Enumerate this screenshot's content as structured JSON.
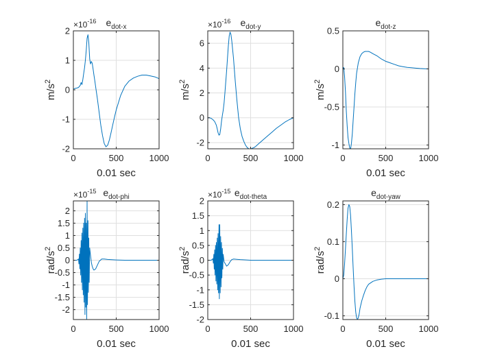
{
  "figure": {
    "background": "#ffffff",
    "axes_color": "#262626",
    "grid_color": "#dfdfdf",
    "line_color": "#0072bd"
  },
  "chart_data": [
    {
      "type": "line",
      "title": "e",
      "title_sub": "dot-x",
      "xlabel": "0.01 sec",
      "ylabel": "m/s",
      "ylabel_sup": "2",
      "exponent": "×10",
      "exponent_sup": "-16",
      "xlim": [
        0,
        1000
      ],
      "ylim": [
        -2,
        2
      ],
      "xticks": [
        0,
        500,
        1000
      ],
      "xticklabels": [
        "0",
        "500",
        "1000"
      ],
      "yticks": [
        -2,
        -1,
        0,
        1,
        2
      ],
      "yticklabels": [
        "-2",
        "-1",
        "0",
        "1",
        "2"
      ],
      "grid": true,
      "series": [
        {
          "name": "e_dot-x",
          "x": [
            0,
            20,
            40,
            60,
            80,
            90,
            100,
            110,
            120,
            130,
            140,
            150,
            160,
            170,
            180,
            190,
            200,
            210,
            220,
            230,
            240,
            250,
            260,
            280,
            300,
            320,
            340,
            360,
            380,
            400,
            420,
            440,
            460,
            480,
            500,
            550,
            600,
            650,
            700,
            750,
            800,
            850,
            900,
            950,
            1000
          ],
          "y": [
            0.02,
            0.05,
            0.06,
            0.08,
            0.15,
            0.25,
            0.18,
            0.35,
            0.55,
            0.75,
            1.0,
            1.35,
            1.75,
            1.87,
            1.6,
            1.05,
            0.88,
            0.96,
            0.9,
            0.7,
            0.5,
            0.3,
            0.1,
            -0.3,
            -0.75,
            -1.2,
            -1.55,
            -1.82,
            -1.93,
            -1.88,
            -1.7,
            -1.45,
            -1.18,
            -0.92,
            -0.68,
            -0.2,
            0.12,
            0.3,
            0.4,
            0.46,
            0.5,
            0.5,
            0.47,
            0.44,
            0.38
          ]
        }
      ]
    },
    {
      "type": "line",
      "title": "e",
      "title_sub": "dot-y",
      "xlabel": "",
      "ylabel": "m/s",
      "ylabel_sup": "2",
      "exponent": "×10",
      "exponent_sup": "-16",
      "xlim": [
        0,
        1000
      ],
      "ylim": [
        -2.5,
        7
      ],
      "xticks": [
        0,
        500,
        1000
      ],
      "xticklabels": [
        "0",
        "500",
        "1000"
      ],
      "yticks": [
        -2,
        0,
        2,
        4,
        6
      ],
      "yticklabels": [
        "-2",
        "0",
        "2",
        "4",
        "6"
      ],
      "grid": true,
      "series": [
        {
          "name": "e_dot-y",
          "x": [
            0,
            20,
            40,
            60,
            80,
            100,
            110,
            120,
            130,
            140,
            150,
            160,
            170,
            180,
            190,
            200,
            220,
            240,
            250,
            260,
            270,
            280,
            300,
            320,
            340,
            360,
            380,
            400,
            420,
            440,
            460,
            480,
            500,
            520,
            540,
            560,
            600,
            650,
            700,
            750,
            800,
            850,
            900,
            950,
            1000
          ],
          "y": [
            0.0,
            0.0,
            -0.05,
            -0.15,
            -0.3,
            -0.6,
            -0.9,
            -1.2,
            -1.4,
            -1.35,
            -0.9,
            -0.3,
            0.2,
            0.6,
            1.2,
            2.0,
            3.8,
            5.8,
            6.6,
            6.9,
            6.7,
            6.2,
            4.8,
            3.0,
            1.4,
            0.0,
            -0.9,
            -1.5,
            -1.9,
            -2.2,
            -2.4,
            -2.5,
            -2.5,
            -2.45,
            -2.4,
            -2.3,
            -2.05,
            -1.75,
            -1.45,
            -1.15,
            -0.85,
            -0.6,
            -0.35,
            -0.15,
            0.0
          ]
        }
      ]
    },
    {
      "type": "line",
      "title": "e",
      "title_sub": "dot-z",
      "xlabel": "0.01 sec",
      "ylabel": "m/s",
      "ylabel_sup": "2",
      "exponent": "",
      "exponent_sup": "",
      "xlim": [
        0,
        1000
      ],
      "ylim": [
        -1.05,
        0.5
      ],
      "xticks": [
        0,
        500,
        1000
      ],
      "xticklabels": [
        "0",
        "500",
        "1000"
      ],
      "yticks": [
        -1,
        -0.5,
        0,
        0.5
      ],
      "yticklabels": [
        "-1",
        "-0.5",
        "0",
        "0.5"
      ],
      "grid": true,
      "series": [
        {
          "name": "e_dot-z",
          "x": [
            0,
            10,
            20,
            30,
            40,
            50,
            60,
            70,
            80,
            90,
            100,
            110,
            120,
            130,
            140,
            150,
            160,
            180,
            200,
            220,
            240,
            260,
            280,
            300,
            320,
            350,
            400,
            450,
            500,
            550,
            600,
            650,
            700,
            750,
            800,
            850,
            900,
            950,
            1000
          ],
          "y": [
            0.0,
            0.02,
            -0.1,
            -0.3,
            -0.55,
            -0.75,
            -0.9,
            -0.98,
            -1.04,
            -1.05,
            -0.98,
            -0.85,
            -0.68,
            -0.5,
            -0.33,
            -0.18,
            -0.06,
            0.08,
            0.16,
            0.2,
            0.22,
            0.23,
            0.23,
            0.23,
            0.22,
            0.2,
            0.17,
            0.13,
            0.1,
            0.08,
            0.06,
            0.04,
            0.03,
            0.02,
            0.015,
            0.01,
            0.005,
            0.003,
            0.0
          ]
        }
      ]
    },
    {
      "type": "line",
      "title": "e",
      "title_sub": "dot-phi",
      "xlabel": "0.01 sec",
      "ylabel": "rad/s",
      "ylabel_sup": "2",
      "exponent": "×10",
      "exponent_sup": "-15",
      "xlim": [
        0,
        1000
      ],
      "ylim": [
        -2.4,
        2.4
      ],
      "xticks": [
        0,
        500,
        1000
      ],
      "xticklabels": [
        "0",
        "500",
        "1000"
      ],
      "yticks": [
        -2,
        -1.5,
        -1,
        -0.5,
        0,
        0.5,
        1,
        1.5,
        2
      ],
      "yticklabels": [
        "-2",
        "-1.5",
        "-1",
        "-0.5",
        "0",
        "0.5",
        "1",
        "1.5",
        "2"
      ],
      "grid": true,
      "series": [
        {
          "name": "e_dot-phi",
          "x": [
            0,
            40,
            60,
            65,
            70,
            75,
            80,
            85,
            90,
            95,
            100,
            105,
            110,
            115,
            120,
            125,
            130,
            135,
            140,
            145,
            150,
            155,
            160,
            165,
            170,
            175,
            180,
            185,
            190,
            200,
            210,
            220,
            230,
            240,
            260,
            280,
            300,
            330,
            360,
            400,
            450,
            500,
            600,
            700,
            800,
            900,
            1000
          ],
          "y": [
            0.0,
            0.0,
            0.05,
            -0.15,
            0.25,
            -0.35,
            0.5,
            -0.6,
            0.8,
            -0.9,
            1.1,
            -1.2,
            1.3,
            -1.4,
            1.5,
            -1.7,
            1.7,
            -2.2,
            1.9,
            -1.9,
            1.5,
            -2.4,
            2.4,
            -1.8,
            1.6,
            -1.3,
            0.9,
            -0.9,
            0.5,
            0.2,
            -0.1,
            -0.25,
            -0.35,
            -0.4,
            -0.35,
            -0.2,
            -0.05,
            0.05,
            0.05,
            0.03,
            0.02,
            0.01,
            0.0,
            0.0,
            0.0,
            0.0,
            0.0
          ]
        }
      ]
    },
    {
      "type": "line",
      "title": "e",
      "title_sub": "dot-theta",
      "xlabel": "0.01 sec",
      "ylabel": "rad/s",
      "ylabel_sup": "2",
      "exponent": "×10",
      "exponent_sup": "-15",
      "xlim": [
        0,
        1000
      ],
      "ylim": [
        -2,
        2
      ],
      "xticks": [
        0,
        500,
        1000
      ],
      "xticklabels": [
        "0",
        "500",
        "1000"
      ],
      "yticks": [
        -2,
        -1.5,
        -1,
        -0.5,
        0,
        0.5,
        1,
        1.5,
        2
      ],
      "yticklabels": [
        "-2",
        "-1.5",
        "-1",
        "-0.5",
        "0",
        "0.5",
        "1",
        "1.5",
        "2"
      ],
      "grid": true,
      "series": [
        {
          "name": "e_dot-theta",
          "x": [
            0,
            40,
            60,
            65,
            70,
            75,
            80,
            85,
            90,
            95,
            100,
            105,
            110,
            115,
            120,
            125,
            130,
            135,
            140,
            145,
            150,
            155,
            160,
            165,
            170,
            175,
            180,
            190,
            200,
            210,
            220,
            240,
            260,
            280,
            300,
            340,
            380,
            450,
            500,
            600,
            700,
            800,
            900,
            1000
          ],
          "y": [
            0.0,
            0.0,
            0.05,
            -0.1,
            0.2,
            -0.3,
            0.35,
            -0.5,
            0.5,
            -0.7,
            0.6,
            -0.8,
            0.75,
            -1.0,
            0.9,
            -1.1,
            1.2,
            -1.3,
            1.2,
            -1.1,
            0.8,
            -0.9,
            0.6,
            -0.6,
            0.4,
            -0.3,
            0.2,
            -0.05,
            -0.1,
            -0.15,
            -0.2,
            -0.15,
            -0.05,
            0.02,
            0.04,
            0.03,
            0.02,
            0.01,
            0.0,
            0.0,
            0.0,
            0.0,
            0.0,
            0.0
          ]
        }
      ]
    },
    {
      "type": "line",
      "title": "e",
      "title_sub": "dot-yaw",
      "xlabel": "0.01 sec",
      "ylabel": "rad/s",
      "ylabel_sup": "2",
      "exponent": "",
      "exponent_sup": "",
      "xlim": [
        0,
        1000
      ],
      "ylim": [
        -0.11,
        0.21
      ],
      "xticks": [
        0,
        500,
        1000
      ],
      "xticklabels": [
        "0",
        "500",
        "1000"
      ],
      "yticks": [
        -0.1,
        0,
        0.1,
        0.2
      ],
      "yticklabels": [
        "-0.1",
        "0",
        "0.1",
        "0.2"
      ],
      "grid": true,
      "series": [
        {
          "name": "e_dot-yaw",
          "x": [
            0,
            10,
            20,
            30,
            40,
            50,
            60,
            70,
            80,
            90,
            100,
            110,
            120,
            130,
            140,
            150,
            160,
            170,
            180,
            190,
            200,
            220,
            240,
            260,
            280,
            300,
            350,
            400,
            450,
            500,
            600,
            700,
            800,
            900,
            1000
          ],
          "y": [
            0.0,
            0.01,
            0.04,
            0.08,
            0.12,
            0.16,
            0.19,
            0.2,
            0.195,
            0.17,
            0.13,
            0.08,
            0.03,
            -0.02,
            -0.06,
            -0.09,
            -0.105,
            -0.11,
            -0.105,
            -0.095,
            -0.08,
            -0.06,
            -0.045,
            -0.032,
            -0.022,
            -0.015,
            -0.007,
            -0.003,
            -0.001,
            0.0,
            0.0,
            0.0,
            0.0,
            0.0,
            0.0
          ]
        }
      ]
    }
  ]
}
